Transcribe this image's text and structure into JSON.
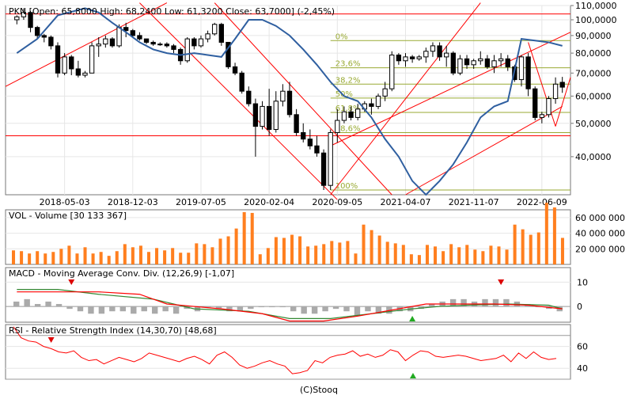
{
  "header": {
    "info": "PKN [Open: 65,8000  High: 68,2400  Low: 61,3200  Close: 63,7000]  (-2,45%)",
    "footer": "(C)Stooq"
  },
  "colors": {
    "up": "#ffffff",
    "down": "#000000",
    "ma": "#2f5fa0",
    "trend": "#ff0000",
    "fibo": "#99aa33",
    "volume": "#ff7f1f",
    "macd_line": "#ff0000",
    "macd_signal": "#338833",
    "macd_hist": "#aaaaaa",
    "rsi": "#ff0000"
  },
  "panels": {
    "vol_label": "VOL - Volume [30 133 367]",
    "macd_label": "MACD - Moving Average Conv. Div. (12,26,9) [-1,07]",
    "rsi_label": "RSI - Relative Strength Index (14,30,70) [48,68]"
  },
  "chart_data": [
    {
      "type": "candlestick",
      "title": "PKN [Open: 65,8000  High: 68,2400  Low: 61,3200  Close: 63,7000]  (-2,45%)",
      "scale": "log",
      "ylim": [
        31,
        110
      ],
      "yticks": [
        40,
        50,
        60,
        70,
        80,
        90,
        100,
        110
      ],
      "ytick_labels": [
        "40,0000",
        "50,0000",
        "60,0000",
        "70,0000",
        "80,0000",
        "90,0000",
        "100,0000",
        "110,0000"
      ],
      "xtick_labels": [
        "2018-05-03",
        "2018-12-03",
        "2019-07-05",
        "2020-02-04",
        "2020-09-05",
        "2021-04-07",
        "2021-11-07",
        "2022-06-09"
      ],
      "xtick_index": [
        7,
        17,
        27,
        37,
        47,
        57,
        67,
        77
      ],
      "candles": [
        [
          100,
          103,
          97,
          102
        ],
        [
          102,
          108,
          100,
          105
        ],
        [
          105,
          106,
          92,
          95
        ],
        [
          95,
          96,
          88,
          90
        ],
        [
          90,
          91,
          86,
          89
        ],
        [
          89,
          90,
          82,
          84
        ],
        [
          84,
          86,
          68,
          70
        ],
        [
          70,
          80,
          69,
          78
        ],
        [
          78,
          79,
          69,
          72
        ],
        [
          72,
          76,
          68,
          69
        ],
        [
          69,
          71,
          68,
          70
        ],
        [
          70,
          86,
          70,
          84
        ],
        [
          84,
          89,
          78,
          85
        ],
        [
          85,
          90,
          83,
          88
        ],
        [
          88,
          89,
          83,
          84
        ],
        [
          84,
          97,
          83,
          95
        ],
        [
          95,
          98,
          89,
          93
        ],
        [
          93,
          94,
          89,
          90
        ],
        [
          90,
          92,
          87,
          88
        ],
        [
          88,
          88,
          85,
          86
        ],
        [
          86,
          87,
          84,
          85
        ],
        [
          85,
          86,
          84,
          85
        ],
        [
          85,
          86,
          83,
          84
        ],
        [
          84,
          85,
          80,
          82
        ],
        [
          82,
          83,
          74,
          76
        ],
        [
          76,
          89,
          75,
          88
        ],
        [
          88,
          89,
          82,
          84
        ],
        [
          84,
          90,
          83,
          88
        ],
        [
          88,
          93,
          86,
          91
        ],
        [
          91,
          98,
          90,
          97
        ],
        [
          97,
          98,
          84,
          86
        ],
        [
          86,
          86,
          72,
          73
        ],
        [
          73,
          75,
          69,
          70
        ],
        [
          70,
          71,
          61,
          62
        ],
        [
          62,
          64,
          56,
          57
        ],
        [
          57,
          59,
          40,
          49
        ],
        [
          49,
          58,
          48,
          56
        ],
        [
          56,
          63,
          46,
          48
        ],
        [
          48,
          62,
          47,
          58
        ],
        [
          58,
          65,
          56,
          62
        ],
        [
          62,
          66,
          52,
          53
        ],
        [
          53,
          55,
          46,
          47
        ],
        [
          47,
          50,
          44,
          45
        ],
        [
          45,
          48,
          42,
          43
        ],
        [
          43,
          46,
          40,
          41
        ],
        [
          41,
          42,
          32,
          33
        ],
        [
          33,
          48,
          32,
          47
        ],
        [
          47,
          55,
          44,
          51
        ],
        [
          51,
          56,
          50,
          54
        ],
        [
          54,
          56,
          51,
          52
        ],
        [
          52,
          57,
          51,
          55
        ],
        [
          55,
          58,
          54,
          57
        ],
        [
          57,
          59,
          53,
          56
        ],
        [
          56,
          61,
          55,
          60
        ],
        [
          60,
          66,
          58,
          63
        ],
        [
          63,
          81,
          62,
          79
        ],
        [
          79,
          80,
          74,
          76
        ],
        [
          76,
          80,
          73,
          78
        ],
        [
          78,
          79,
          75,
          77
        ],
        [
          77,
          79,
          76,
          78
        ],
        [
          78,
          83,
          75,
          81
        ],
        [
          81,
          86,
          78,
          84
        ],
        [
          84,
          86,
          76,
          78
        ],
        [
          78,
          84,
          73,
          80
        ],
        [
          80,
          81,
          69,
          70
        ],
        [
          70,
          79,
          69,
          77
        ],
        [
          77,
          79,
          72,
          74
        ],
        [
          74,
          77,
          72,
          76
        ],
        [
          76,
          81,
          74,
          77
        ],
        [
          77,
          79,
          72,
          73
        ],
        [
          73,
          79,
          70,
          76
        ],
        [
          76,
          80,
          73,
          77
        ],
        [
          77,
          79,
          71,
          73
        ],
        [
          73,
          74,
          66,
          67
        ],
        [
          67,
          79,
          64,
          78
        ],
        [
          78,
          80,
          60,
          63
        ],
        [
          63,
          64,
          51,
          52
        ],
        [
          52,
          54,
          50,
          53
        ],
        [
          53,
          60,
          52,
          59
        ],
        [
          59,
          68,
          57,
          65
        ],
        [
          65.8,
          68.24,
          61.32,
          63.7
        ]
      ],
      "ma": [
        [
          0,
          80
        ],
        [
          3,
          88
        ],
        [
          6,
          103
        ],
        [
          10,
          108
        ],
        [
          12,
          105
        ],
        [
          14,
          98
        ],
        [
          16,
          92
        ],
        [
          18,
          86
        ],
        [
          20,
          82
        ],
        [
          22,
          80
        ],
        [
          24,
          79
        ],
        [
          26,
          80
        ],
        [
          28,
          79
        ],
        [
          30,
          78
        ],
        [
          32,
          88
        ],
        [
          34,
          100
        ],
        [
          36,
          100
        ],
        [
          38,
          96
        ],
        [
          40,
          90
        ],
        [
          42,
          82
        ],
        [
          44,
          74
        ],
        [
          46,
          66
        ],
        [
          48,
          60
        ],
        [
          50,
          58
        ],
        [
          52,
          52
        ],
        [
          54,
          45
        ],
        [
          56,
          40
        ],
        [
          58,
          34
        ],
        [
          60,
          31
        ],
        [
          62,
          34
        ],
        [
          64,
          38
        ],
        [
          66,
          44
        ],
        [
          68,
          52
        ],
        [
          70,
          56
        ],
        [
          72,
          58
        ],
        [
          74,
          88
        ],
        [
          76,
          87
        ],
        [
          78,
          86
        ],
        [
          80,
          84
        ]
      ],
      "trendlines": [
        [
          [
            -2,
            64
          ],
          [
            22,
            112
          ]
        ],
        [
          [
            18,
            112
          ],
          [
            47,
            30
          ]
        ],
        [
          [
            29,
            112
          ],
          [
            55,
            31
          ]
        ],
        [
          [
            46,
            31
          ],
          [
            68,
            112
          ]
        ],
        [
          [
            57,
            31
          ],
          [
            80,
            56
          ]
        ],
        [
          [
            46,
            43
          ],
          [
            84,
            92
          ]
        ],
        [
          [
            75,
            86
          ],
          [
            79,
            49
          ]
        ],
        [
          [
            79,
            49
          ],
          [
            82,
            68
          ]
        ],
        [
          [
            -2,
            46
          ],
          [
            84,
            46
          ]
        ],
        [
          [
            -2,
            104
          ],
          [
            84,
            104
          ]
        ]
      ],
      "fib_levels": [
        {
          "label": "0%",
          "value": 87
        },
        {
          "label": "23,6%",
          "value": 72.5
        },
        {
          "label": "38,2%",
          "value": 65
        },
        {
          "label": "50%",
          "value": 59.2
        },
        {
          "label": "61,8%",
          "value": 53.8
        },
        {
          "label": "78,6%",
          "value": 47
        },
        {
          "label": "100%",
          "value": 32
        }
      ]
    },
    {
      "type": "bar",
      "title": "VOL - Volume [30 133 367]",
      "ylim": [
        0,
        70000000
      ],
      "yticks": [
        20000000,
        40000000,
        60000000
      ],
      "ytick_labels": [
        "20 000 000",
        "40 000 000",
        "60 000 000"
      ],
      "values": [
        18,
        17,
        14,
        17,
        14,
        16,
        20,
        24,
        14,
        22,
        14,
        16,
        11,
        17,
        26,
        22,
        24,
        16,
        21,
        18,
        21,
        15,
        15,
        27,
        26,
        22,
        33,
        36,
        46,
        67,
        66,
        13,
        21,
        35,
        34,
        38,
        36,
        23,
        24,
        26,
        30,
        28,
        30,
        14,
        51,
        44,
        37,
        29,
        27,
        25,
        13,
        12,
        25,
        23,
        17,
        26,
        22,
        25,
        19,
        17,
        24,
        23,
        19,
        51,
        45,
        38,
        41,
        79,
        73,
        34
      ]
    },
    {
      "type": "line",
      "title": "MACD - Moving Average Conv. Div. (12,26,9) [-1,07]",
      "ylim": [
        -6.5,
        16
      ],
      "yticks": [
        0,
        10
      ],
      "ytick_labels": [
        "0",
        "10"
      ],
      "macd": [
        [
          0,
          6
        ],
        [
          6,
          6
        ],
        [
          12,
          6
        ],
        [
          18,
          5
        ],
        [
          22,
          1
        ],
        [
          30,
          -1
        ],
        [
          36,
          -3
        ],
        [
          40,
          -6
        ],
        [
          45,
          -6
        ],
        [
          50,
          -4
        ],
        [
          56,
          -1
        ],
        [
          60,
          1
        ],
        [
          64,
          1
        ],
        [
          70,
          1
        ],
        [
          75,
          0.5
        ],
        [
          80,
          -1
        ]
      ],
      "signal": [
        [
          0,
          7
        ],
        [
          6,
          7
        ],
        [
          12,
          5
        ],
        [
          20,
          3
        ],
        [
          26,
          -1
        ],
        [
          34,
          -2
        ],
        [
          40,
          -5
        ],
        [
          46,
          -5
        ],
        [
          52,
          -3
        ],
        [
          58,
          -1
        ],
        [
          62,
          0
        ],
        [
          66,
          0.5
        ],
        [
          72,
          1
        ],
        [
          78,
          0.5
        ],
        [
          80,
          -1
        ]
      ],
      "hist": [
        2,
        3,
        1,
        2,
        1,
        -1,
        -2,
        -3,
        -3,
        -2,
        -2,
        -3,
        -2,
        -3,
        -2,
        -3,
        -1,
        -2,
        0,
        -1,
        -2,
        -2,
        -1,
        0,
        0,
        0,
        -2,
        -3,
        -3,
        -2,
        -1,
        -2,
        -4,
        -2,
        -3,
        -3,
        -2,
        -2,
        -1,
        1,
        2,
        3,
        3,
        2,
        3,
        3,
        3,
        2,
        1,
        0,
        -1,
        -2
      ],
      "signal_marks": [
        {
          "x": 8,
          "dir": "sell"
        },
        {
          "x": 58,
          "dir": "buy"
        },
        {
          "x": 71,
          "dir": "sell"
        }
      ]
    },
    {
      "type": "line",
      "title": "RSI - Relative Strength Index (14,30,70) [48,68]",
      "ylim": [
        30,
        80
      ],
      "yticks": [
        40,
        60
      ],
      "ytick_labels": [
        "40",
        "60"
      ],
      "levels": [
        70,
        30
      ],
      "values": [
        78,
        68,
        65,
        64,
        60,
        58,
        55,
        54,
        56,
        50,
        47,
        48,
        44,
        47,
        50,
        48,
        46,
        49,
        54,
        52,
        50,
        48,
        46,
        49,
        51,
        48,
        44,
        52,
        55,
        50,
        43,
        40,
        42,
        45,
        47,
        44,
        42,
        35,
        36,
        38,
        47,
        45,
        50,
        52,
        53,
        56,
        51,
        53,
        50,
        52,
        57,
        55,
        47,
        52,
        56,
        55,
        51,
        50,
        51,
        52,
        51,
        49,
        47,
        48,
        49,
        52,
        46,
        54,
        49,
        55,
        50,
        48,
        49
      ],
      "signal_marks": [
        {
          "x": 5,
          "dir": "sell"
        },
        {
          "x": 53,
          "dir": "buy"
        }
      ]
    }
  ]
}
